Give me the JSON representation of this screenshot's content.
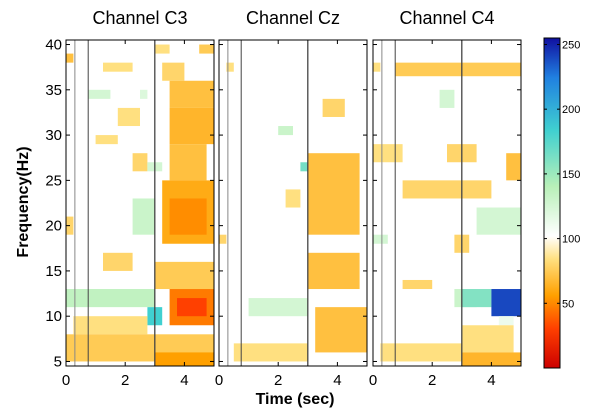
{
  "chart_data": {
    "type": "heatmap",
    "xlabel": "Time (sec)",
    "ylabel": "Frequency(Hz)",
    "xlim": [
      0,
      5
    ],
    "ylim": [
      4.5,
      40.5
    ],
    "x_ticks": [
      "0",
      "2",
      "4"
    ],
    "x_tick_values": [
      0,
      2,
      4
    ],
    "y_ticks": [
      "5",
      "10",
      "15",
      "20",
      "25",
      "30",
      "35",
      "40"
    ],
    "y_tick_values": [
      5,
      10,
      15,
      20,
      25,
      30,
      35,
      40
    ],
    "event_lines_sec": [
      0.75,
      3.0
    ],
    "channel_extra_lines_sec": [
      0.3,
      0.3,
      0.3
    ],
    "colorbar": {
      "range": [
        0,
        255
      ],
      "ticks": [
        "50",
        "100",
        "150",
        "200",
        "250"
      ],
      "tick_values": [
        50,
        100,
        150,
        200,
        250
      ],
      "colormap": "jet-reversed (low = red, mid = white, high = blue)"
    },
    "panels": [
      {
        "title": "Channel C3",
        "regions": [
          {
            "t": [
              4.5,
              5.0
            ],
            "f": [
              39,
              40
            ],
            "v": 75
          },
          {
            "t": [
              3.0,
              3.5
            ],
            "f": [
              39,
              40
            ],
            "v": 85
          },
          {
            "t": [
              0.0,
              0.25
            ],
            "f": [
              38,
              39
            ],
            "v": 70
          },
          {
            "t": [
              1.25,
              2.25
            ],
            "f": [
              37,
              38
            ],
            "v": 85
          },
          {
            "t": [
              3.25,
              4.0
            ],
            "f": [
              36,
              38
            ],
            "v": 80
          },
          {
            "t": [
              0.75,
              1.5
            ],
            "f": [
              34,
              35
            ],
            "v": 125
          },
          {
            "t": [
              2.5,
              2.75
            ],
            "f": [
              34,
              35
            ],
            "v": 120
          },
          {
            "t": [
              3.5,
              5.0
            ],
            "f": [
              33,
              36
            ],
            "v": 70
          },
          {
            "t": [
              1.75,
              2.5
            ],
            "f": [
              31,
              33
            ],
            "v": 85
          },
          {
            "t": [
              3.5,
              5.0
            ],
            "f": [
              29,
              33
            ],
            "v": 65
          },
          {
            "t": [
              1.0,
              1.75
            ],
            "f": [
              29,
              30
            ],
            "v": 85
          },
          {
            "t": [
              2.25,
              2.75
            ],
            "f": [
              26,
              28
            ],
            "v": 80
          },
          {
            "t": [
              3.5,
              4.75
            ],
            "f": [
              25,
              29
            ],
            "v": 70
          },
          {
            "t": [
              2.75,
              3.25
            ],
            "f": [
              26,
              27
            ],
            "v": 125
          },
          {
            "t": [
              3.25,
              5.0
            ],
            "f": [
              18,
              25
            ],
            "v": 60
          },
          {
            "t": [
              3.5,
              4.75
            ],
            "f": [
              19,
              23
            ],
            "v": 50
          },
          {
            "t": [
              2.25,
              3.0
            ],
            "f": [
              19,
              23
            ],
            "v": 130
          },
          {
            "t": [
              0.0,
              0.25
            ],
            "f": [
              19,
              21
            ],
            "v": 80
          },
          {
            "t": [
              1.25,
              2.25
            ],
            "f": [
              15,
              17
            ],
            "v": 80
          },
          {
            "t": [
              3.0,
              5.0
            ],
            "f": [
              13,
              16
            ],
            "v": 75
          },
          {
            "t": [
              0.0,
              3.0
            ],
            "f": [
              11,
              13
            ],
            "v": 135
          },
          {
            "t": [
              2.75,
              3.25
            ],
            "f": [
              9,
              11
            ],
            "v": 185
          },
          {
            "t": [
              3.5,
              5.0
            ],
            "f": [
              9,
              13
            ],
            "v": 45
          },
          {
            "t": [
              3.75,
              4.75
            ],
            "f": [
              10,
              12
            ],
            "v": 30
          },
          {
            "t": [
              0.25,
              2.75
            ],
            "f": [
              8,
              10
            ],
            "v": 85
          },
          {
            "t": [
              0.0,
              5.0
            ],
            "f": [
              5,
              8
            ],
            "v": 75
          },
          {
            "t": [
              3.0,
              5.0
            ],
            "f": [
              4.5,
              6
            ],
            "v": 55
          }
        ]
      },
      {
        "title": "Channel Cz",
        "regions": [
          {
            "t": [
              0.25,
              0.5
            ],
            "f": [
              37,
              38
            ],
            "v": 85
          },
          {
            "t": [
              3.5,
              4.25
            ],
            "f": [
              32,
              34
            ],
            "v": 80
          },
          {
            "t": [
              2.0,
              2.5
            ],
            "f": [
              30,
              31
            ],
            "v": 130
          },
          {
            "t": [
              2.75,
              3.25
            ],
            "f": [
              26,
              27
            ],
            "v": 165
          },
          {
            "t": [
              3.0,
              4.75
            ],
            "f": [
              19,
              28
            ],
            "v": 70
          },
          {
            "t": [
              2.25,
              2.75
            ],
            "f": [
              22,
              24
            ],
            "v": 85
          },
          {
            "t": [
              0.0,
              0.25
            ],
            "f": [
              18,
              19
            ],
            "v": 80
          },
          {
            "t": [
              3.0,
              4.75
            ],
            "f": [
              13,
              17
            ],
            "v": 70
          },
          {
            "t": [
              1.0,
              3.0
            ],
            "f": [
              10,
              12
            ],
            "v": 125
          },
          {
            "t": [
              3.25,
              5.0
            ],
            "f": [
              6,
              11
            ],
            "v": 70
          },
          {
            "t": [
              0.5,
              3.0
            ],
            "f": [
              5,
              7
            ],
            "v": 85
          }
        ]
      },
      {
        "title": "Channel C4",
        "regions": [
          {
            "t": [
              0.0,
              0.25
            ],
            "f": [
              37,
              38
            ],
            "v": 85
          },
          {
            "t": [
              0.75,
              5.0
            ],
            "f": [
              36.5,
              38
            ],
            "v": 75
          },
          {
            "t": [
              2.25,
              2.75
            ],
            "f": [
              33,
              35
            ],
            "v": 125
          },
          {
            "t": [
              0.0,
              1.0
            ],
            "f": [
              27,
              29
            ],
            "v": 85
          },
          {
            "t": [
              2.5,
              3.5
            ],
            "f": [
              27,
              29
            ],
            "v": 80
          },
          {
            "t": [
              4.5,
              5.0
            ],
            "f": [
              25,
              28
            ],
            "v": 70
          },
          {
            "t": [
              1.0,
              4.0
            ],
            "f": [
              23,
              25
            ],
            "v": 80
          },
          {
            "t": [
              3.5,
              5.0
            ],
            "f": [
              19,
              22
            ],
            "v": 125
          },
          {
            "t": [
              0.0,
              0.5
            ],
            "f": [
              18,
              19
            ],
            "v": 125
          },
          {
            "t": [
              2.75,
              3.25
            ],
            "f": [
              17,
              19
            ],
            "v": 80
          },
          {
            "t": [
              1.0,
              2.0
            ],
            "f": [
              13,
              14
            ],
            "v": 80
          },
          {
            "t": [
              2.75,
              3.5
            ],
            "f": [
              11,
              13
            ],
            "v": 130
          },
          {
            "t": [
              3.0,
              4.0
            ],
            "f": [
              11,
              13
            ],
            "v": 160
          },
          {
            "t": [
              4.0,
              5.0
            ],
            "f": [
              10,
              13
            ],
            "v": 240
          },
          {
            "t": [
              4.25,
              4.75
            ],
            "f": [
              9,
              10
            ],
            "v": 110
          },
          {
            "t": [
              3.0,
              4.75
            ],
            "f": [
              6,
              9
            ],
            "v": 85
          },
          {
            "t": [
              3.0,
              5.0
            ],
            "f": [
              4.5,
              6
            ],
            "v": 65
          },
          {
            "t": [
              0.25,
              3.0
            ],
            "f": [
              5,
              7
            ],
            "v": 85
          }
        ]
      }
    ]
  }
}
